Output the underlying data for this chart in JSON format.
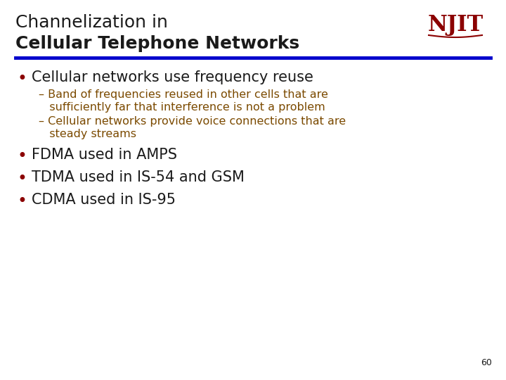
{
  "title_line1": "Channelization in",
  "title_line2": "Cellular Telephone Networks",
  "title_color": "#1a1a1a",
  "title_fontsize": 18,
  "njit_color": "#8B0000",
  "rule_color": "#0000CC",
  "bullet_color": "#8B0000",
  "bullet1_text": "Cellular networks use frequency reuse",
  "bullet1_fontsize": 15,
  "sub_bullet_color": "#7B4A00",
  "sub1_line1": "– Band of frequencies reused in other cells that are",
  "sub1_line2": "   sufficiently far that interference is not a problem",
  "sub2_line1": "– Cellular networks provide voice connections that are",
  "sub2_line2": "   steady streams",
  "sub_fontsize": 11.5,
  "bullet2_text": "FDMA used in AMPS",
  "bullet3_text": "TDMA used in IS-54 and GSM",
  "bullet4_text": "CDMA used in IS-95",
  "bullet234_fontsize": 15,
  "page_number": "60",
  "page_fontsize": 9
}
